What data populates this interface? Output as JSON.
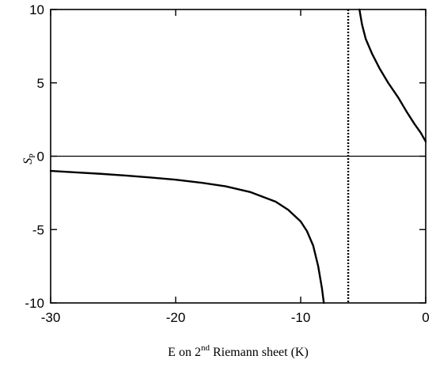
{
  "chart_data": {
    "type": "line",
    "title": "",
    "xlabel_parts": {
      "prefix": "E on 2",
      "superscript": "nd",
      "suffix": " Riemann sheet (K)"
    },
    "ylabel_parts": {
      "main": "S",
      "subscript": "P"
    },
    "xlim": [
      -30,
      0
    ],
    "ylim": [
      -10,
      10
    ],
    "xticks": [
      -30,
      -20,
      -10,
      0
    ],
    "yticks": [
      -10,
      -5,
      0,
      5,
      10
    ],
    "xtick_labels": [
      "-30",
      "-20",
      "-10",
      "0"
    ],
    "ytick_labels": [
      "-10",
      "-5",
      "0",
      "5",
      "10"
    ],
    "grid": false,
    "reference_lines": [
      {
        "orientation": "horizontal",
        "value": 0,
        "style": "solid"
      },
      {
        "orientation": "vertical",
        "value": -6.2,
        "style": "dotted"
      }
    ],
    "series": [
      {
        "style": "solid",
        "points": [
          [
            -30,
            -1.0
          ],
          [
            -28,
            -1.1
          ],
          [
            -26,
            -1.2
          ],
          [
            -24,
            -1.32
          ],
          [
            -22,
            -1.45
          ],
          [
            -20,
            -1.6
          ],
          [
            -18,
            -1.8
          ],
          [
            -16,
            -2.05
          ],
          [
            -14,
            -2.45
          ],
          [
            -12,
            -3.1
          ],
          [
            -11,
            -3.65
          ],
          [
            -10,
            -4.45
          ],
          [
            -9.5,
            -5.1
          ],
          [
            -9,
            -6.1
          ],
          [
            -8.6,
            -7.5
          ],
          [
            -8.3,
            -9.0
          ],
          [
            -8.15,
            -10.0
          ]
        ]
      },
      {
        "style": "solid",
        "points": [
          [
            -5.3,
            10.0
          ],
          [
            -5.1,
            9.0
          ],
          [
            -4.8,
            8.0
          ],
          [
            -4.3,
            7.0
          ],
          [
            -3.7,
            6.0
          ],
          [
            -3.0,
            5.0
          ],
          [
            -2.2,
            4.0
          ],
          [
            -1.5,
            3.0
          ],
          [
            -0.9,
            2.2
          ],
          [
            -0.4,
            1.6
          ],
          [
            0,
            1.0
          ]
        ]
      }
    ]
  }
}
